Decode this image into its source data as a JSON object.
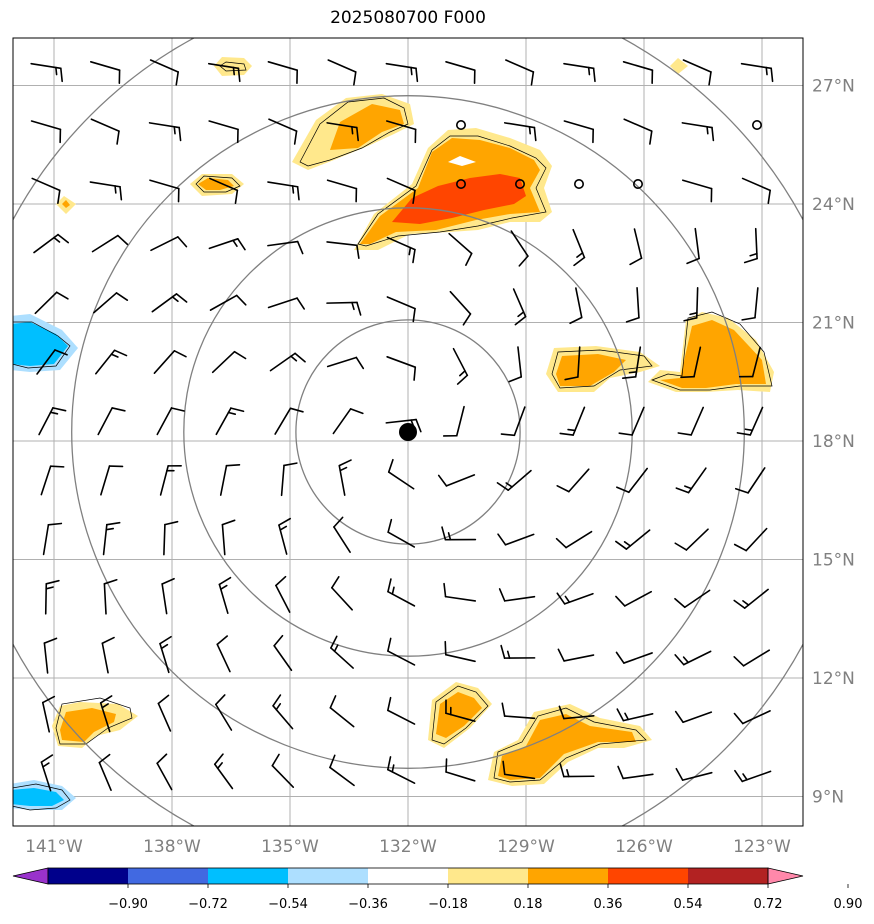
{
  "title": "2025080700 F000",
  "lon_labels": [
    "141°W",
    "138°W",
    "135°W",
    "132°W",
    "129°W",
    "126°W",
    "123°W"
  ],
  "lat_labels": [
    "27°N",
    "24°N",
    "21°N",
    "18°N",
    "15°N",
    "12°N",
    "9°N"
  ],
  "colorbar": {
    "ticks": [
      "−0.90",
      "−0.72",
      "−0.54",
      "−0.36",
      "−0.18",
      "0.18",
      "0.36",
      "0.54",
      "0.72",
      "0.90"
    ],
    "colors": [
      "#9932CC",
      "#00008B",
      "#4169E1",
      "#00BFFF",
      "#ADDFFF",
      "#FFFFFF",
      "#FFE88C",
      "#FFA500",
      "#FF4500",
      "#B22222",
      "#FF88AA"
    ]
  },
  "map": {
    "lon_range": [
      -141.8,
      -121.8
    ],
    "lat_range": [
      8.0,
      28.2
    ],
    "center": {
      "lon": -132.0,
      "lat": 18.2
    },
    "range_rings_deg": [
      2.85,
      5.7,
      8.55,
      11.4
    ]
  }
}
